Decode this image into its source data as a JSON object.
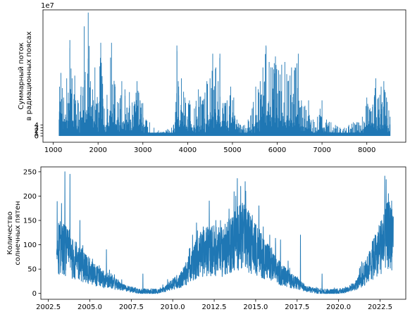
{
  "colors": {
    "series": "#1f77b4",
    "axes": "#000000",
    "background": "#ffffff"
  },
  "chart_data": [
    {
      "type": "line",
      "title": "",
      "xlabel": "",
      "ylabel_lines": [
        "Суммарный поток",
        "в радиационных поясах"
      ],
      "y_offset_text": "1e7",
      "xlim": [
        770,
        8870
      ],
      "ylim": [
        -2.3,
        46.0
      ],
      "y_scale_note": "values in units of 1e7",
      "x_ticks": [
        1000,
        2000,
        3000,
        4000,
        5000,
        6000,
        7000,
        8000
      ],
      "y_ticks": [
        0,
        1,
        2,
        3,
        4
      ],
      "grid": false,
      "legend": "none",
      "series": [
        {
          "x_range": [
            1130,
            8520
          ],
          "baseline": 0,
          "envelope_points": [
            [
              1130,
              6
            ],
            [
              1140,
              18
            ],
            [
              1170,
              23
            ],
            [
              1230,
              14
            ],
            [
              1300,
              21
            ],
            [
              1370,
              35
            ],
            [
              1420,
              21
            ],
            [
              1480,
              22
            ],
            [
              1560,
              12
            ],
            [
              1620,
              18
            ],
            [
              1690,
              40
            ],
            [
              1740,
              8
            ],
            [
              1780,
              45
            ],
            [
              1830,
              20
            ],
            [
              1880,
              17
            ],
            [
              1930,
              25
            ],
            [
              2000,
              12
            ],
            [
              2060,
              34
            ],
            [
              2140,
              10
            ],
            [
              2200,
              15
            ],
            [
              2300,
              34
            ],
            [
              2380,
              18
            ],
            [
              2460,
              12
            ],
            [
              2530,
              20
            ],
            [
              2600,
              17
            ],
            [
              2700,
              16
            ],
            [
              2800,
              11
            ],
            [
              2870,
              20
            ],
            [
              2940,
              13
            ],
            [
              3000,
              12
            ],
            [
              3070,
              6
            ],
            [
              3150,
              5
            ],
            [
              3250,
              3
            ],
            [
              3350,
              2
            ],
            [
              3450,
              1.5
            ],
            [
              3550,
              2.5
            ],
            [
              3640,
              3
            ],
            [
              3720,
              5
            ],
            [
              3760,
              33
            ],
            [
              3800,
              18
            ],
            [
              3860,
              21
            ],
            [
              3940,
              14
            ],
            [
              4040,
              13
            ],
            [
              4150,
              10
            ],
            [
              4240,
              17
            ],
            [
              4340,
              13
            ],
            [
              4430,
              20
            ],
            [
              4500,
              21
            ],
            [
              4560,
              30
            ],
            [
              4630,
              25
            ],
            [
              4680,
              20
            ],
            [
              4720,
              30
            ],
            [
              4790,
              12
            ],
            [
              4880,
              13
            ],
            [
              4960,
              18
            ],
            [
              5030,
              14
            ],
            [
              5100,
              6
            ],
            [
              5180,
              4
            ],
            [
              5270,
              4
            ],
            [
              5350,
              6
            ],
            [
              5440,
              10
            ],
            [
              5520,
              18
            ],
            [
              5620,
              20
            ],
            [
              5680,
              25
            ],
            [
              5750,
              33
            ],
            [
              5820,
              27
            ],
            [
              5890,
              25
            ],
            [
              5960,
              29
            ],
            [
              6030,
              24
            ],
            [
              6100,
              26
            ],
            [
              6170,
              27
            ],
            [
              6240,
              20
            ],
            [
              6320,
              25
            ],
            [
              6400,
              25
            ],
            [
              6470,
              30
            ],
            [
              6540,
              13
            ],
            [
              6620,
              11
            ],
            [
              6700,
              13
            ],
            [
              6800,
              6
            ],
            [
              6900,
              7
            ],
            [
              7000,
              13
            ],
            [
              7100,
              6
            ],
            [
              7200,
              5
            ],
            [
              7300,
              4
            ],
            [
              7400,
              3
            ],
            [
              7500,
              3
            ],
            [
              7600,
              4
            ],
            [
              7700,
              5
            ],
            [
              7800,
              5
            ],
            [
              7900,
              7
            ],
            [
              8000,
              14
            ],
            [
              8100,
              9
            ],
            [
              8200,
              21
            ],
            [
              8260,
              14
            ],
            [
              8320,
              18
            ],
            [
              8380,
              20
            ],
            [
              8440,
              14
            ],
            [
              8520,
              7
            ]
          ]
        }
      ]
    },
    {
      "type": "line",
      "title": "",
      "xlabel": "",
      "ylabel_lines": [
        "Количество",
        "солнечных пятен"
      ],
      "xlim": [
        2002.05,
        2024.05
      ],
      "ylim": [
        -12,
        260
      ],
      "x_ticks": [
        2002.5,
        2005.0,
        2007.5,
        2010.0,
        2012.5,
        2015.0,
        2017.5,
        2020.0,
        2022.5
      ],
      "x_tick_labels": [
        "2002.5",
        "2005.0",
        "2007.5",
        "2010.0",
        "2012.5",
        "2015.0",
        "2017.5",
        "2020.0",
        "2022.5"
      ],
      "y_ticks": [
        0,
        50,
        100,
        150,
        200,
        250
      ],
      "grid": false,
      "legend": "none",
      "series": [
        {
          "x_range": [
            2003.0,
            2023.3
          ],
          "trend_points": [
            [
              2003.0,
              95
            ],
            [
              2003.5,
              90
            ],
            [
              2004.0,
              70
            ],
            [
              2004.5,
              60
            ],
            [
              2005.0,
              45
            ],
            [
              2005.5,
              35
            ],
            [
              2006.0,
              25
            ],
            [
              2006.5,
              20
            ],
            [
              2007.0,
              12
            ],
            [
              2007.5,
              8
            ],
            [
              2008.0,
              5
            ],
            [
              2008.5,
              3
            ],
            [
              2009.0,
              4
            ],
            [
              2009.5,
              8
            ],
            [
              2010.0,
              20
            ],
            [
              2010.5,
              28
            ],
            [
              2011.0,
              50
            ],
            [
              2011.5,
              75
            ],
            [
              2012.0,
              85
            ],
            [
              2012.5,
              90
            ],
            [
              2013.0,
              85
            ],
            [
              2013.5,
              100
            ],
            [
              2014.0,
              120
            ],
            [
              2014.5,
              110
            ],
            [
              2015.0,
              90
            ],
            [
              2015.5,
              75
            ],
            [
              2016.0,
              55
            ],
            [
              2016.5,
              40
            ],
            [
              2017.0,
              30
            ],
            [
              2017.5,
              20
            ],
            [
              2018.0,
              10
            ],
            [
              2018.5,
              6
            ],
            [
              2019.0,
              4
            ],
            [
              2019.5,
              3
            ],
            [
              2020.0,
              4
            ],
            [
              2020.5,
              8
            ],
            [
              2021.0,
              15
            ],
            [
              2021.5,
              35
            ],
            [
              2022.0,
              65
            ],
            [
              2022.5,
              95
            ],
            [
              2023.0,
              120
            ],
            [
              2023.3,
              110
            ]
          ],
          "peaks": [
            [
              2003.5,
              250
            ],
            [
              2003.8,
              245
            ],
            [
              2003.3,
              185
            ],
            [
              2004.4,
              150
            ],
            [
              2006.0,
              90
            ],
            [
              2008.2,
              40
            ],
            [
              2011.2,
              120
            ],
            [
              2012.2,
              190
            ],
            [
              2012.6,
              150
            ],
            [
              2013.8,
              200
            ],
            [
              2014.1,
              220
            ],
            [
              2014.4,
              210
            ],
            [
              2015.2,
              180
            ],
            [
              2016.5,
              110
            ],
            [
              2017.7,
              120
            ],
            [
              2019.0,
              40
            ],
            [
              2021.4,
              65
            ],
            [
              2022.6,
              150
            ],
            [
              2023.0,
              205
            ],
            [
              2023.2,
              190
            ]
          ]
        }
      ]
    }
  ]
}
